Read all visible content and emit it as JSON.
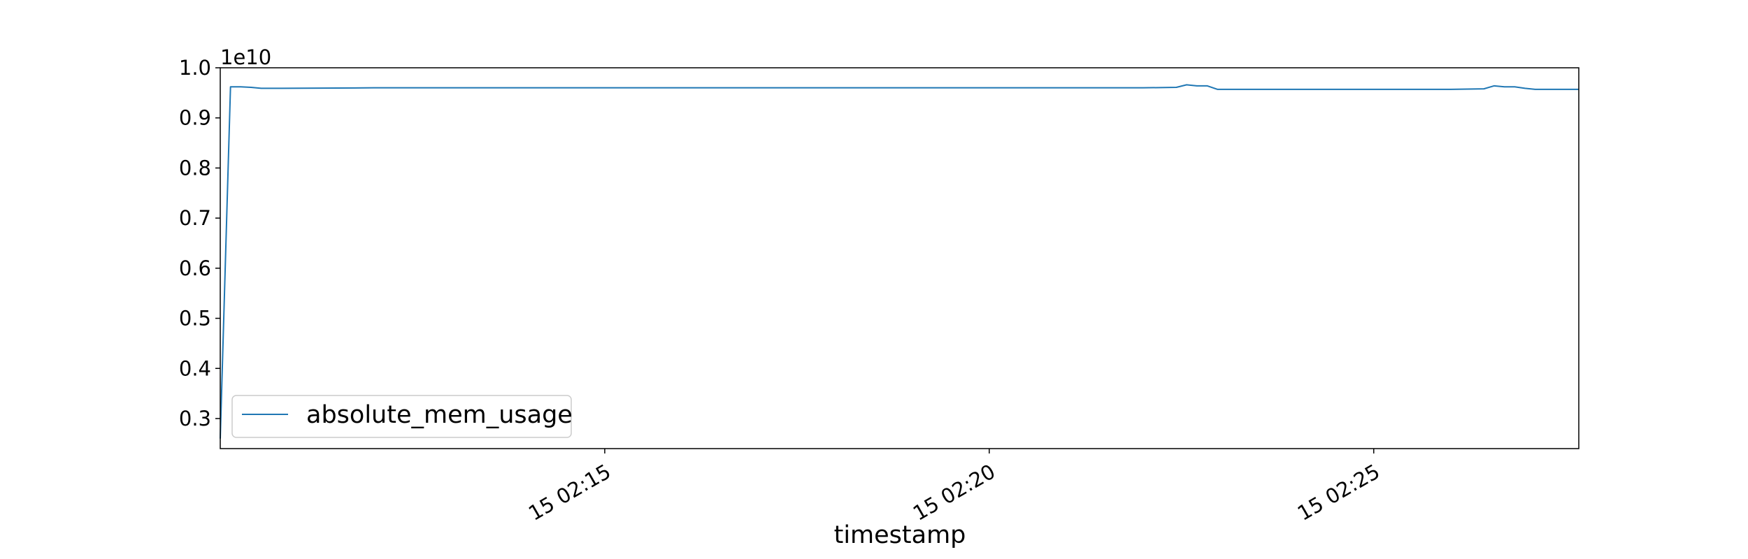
{
  "chart_data": {
    "type": "line",
    "title": "",
    "xlabel": "timestamp",
    "ylabel": "",
    "y_offset_label": "1e10",
    "ylim": [
      0.24,
      1.0
    ],
    "xlim": [
      "15 02:10:00",
      "15 02:27:40"
    ],
    "grid": false,
    "legend_position": "lower-left",
    "line_color": "#1f77b4",
    "x_ticks": [
      {
        "value": "15 02:15:00",
        "label": "15 02:15"
      },
      {
        "value": "15 02:20:00",
        "label": "15 02:20"
      },
      {
        "value": "15 02:25:00",
        "label": "15 02:25"
      }
    ],
    "y_ticks": [
      {
        "value": 0.3,
        "label": "0.3"
      },
      {
        "value": 0.4,
        "label": "0.4"
      },
      {
        "value": 0.5,
        "label": "0.5"
      },
      {
        "value": 0.6,
        "label": "0.6"
      },
      {
        "value": 0.7,
        "label": "0.7"
      },
      {
        "value": 0.8,
        "label": "0.8"
      },
      {
        "value": 0.9,
        "label": "0.9"
      },
      {
        "value": 1.0,
        "label": "1.0"
      }
    ],
    "series": [
      {
        "name": "absolute_mem_usage",
        "x": [
          "15 02:10:00",
          "15 02:10:08",
          "15 02:10:16",
          "15 02:10:24",
          "15 02:10:32",
          "15 02:10:48",
          "15 02:12:00",
          "15 02:14:00",
          "15 02:16:00",
          "15 02:18:00",
          "15 02:20:00",
          "15 02:22:00",
          "15 02:22:26",
          "15 02:22:34",
          "15 02:22:42",
          "15 02:22:50",
          "15 02:22:58",
          "15 02:24:00",
          "15 02:26:00",
          "15 02:26:26",
          "15 02:26:34",
          "15 02:26:42",
          "15 02:26:50",
          "15 02:26:58",
          "15 02:27:06",
          "15 02:27:40"
        ],
        "values": [
          0.26,
          0.962,
          0.962,
          0.961,
          0.959,
          0.959,
          0.96,
          0.96,
          0.96,
          0.96,
          0.96,
          0.96,
          0.961,
          0.966,
          0.964,
          0.964,
          0.957,
          0.957,
          0.957,
          0.958,
          0.964,
          0.962,
          0.962,
          0.959,
          0.957,
          0.957
        ]
      }
    ]
  }
}
